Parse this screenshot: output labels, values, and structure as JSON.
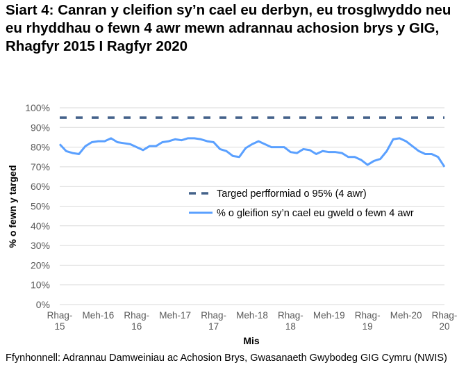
{
  "title": "Siart 4: Canran y cleifion sy’n cael eu derbyn, eu trosglwyddo neu eu rhyddhau o fewn 4 awr mewn adrannau achosion brys y GIG, Rhagfyr 2015 I Ragfyr 2020",
  "source": "Ffynhonnell: Adrannau Damweiniau ac Achosion Brys, Gwasanaeth Gwybodeg GIG Cymru (NWIS)",
  "chart_data": {
    "type": "line",
    "xlabel": "Mis",
    "ylabel": "% o fewn y targed",
    "ylim": [
      0,
      100
    ],
    "yticks": [
      "0%",
      "10%",
      "20%",
      "30%",
      "40%",
      "50%",
      "60%",
      "70%",
      "80%",
      "90%",
      "100%"
    ],
    "xticks": [
      [
        "Rhag-",
        "15"
      ],
      [
        "Meh-16"
      ],
      [
        "Rhag-",
        "16"
      ],
      [
        "Meh-17"
      ],
      [
        "Rhag-",
        "17"
      ],
      [
        "Meh-18"
      ],
      [
        "Rhag-",
        "18"
      ],
      [
        "Meh-19"
      ],
      [
        "Rhag-",
        "19"
      ],
      [
        "Meh-20"
      ],
      [
        "Rhag-",
        "20"
      ]
    ],
    "grid": true,
    "legend": "center-right",
    "series": [
      {
        "name": "Targed perfformiad o 95% (4 awr)",
        "color": "#44628a",
        "dash": true,
        "values": [
          95
        ]
      },
      {
        "name": "% o gleifion sy’n cael eu gweld o fewn 4 awr",
        "color": "#5aa0ff",
        "values": [
          81.5,
          78,
          77,
          76.5,
          80.5,
          82.5,
          83,
          83,
          84.5,
          82.5,
          82,
          81.5,
          80,
          78.5,
          80.5,
          80.5,
          82.5,
          83,
          84,
          83.5,
          84.5,
          84.5,
          84,
          83,
          82.5,
          79,
          78,
          75.5,
          75,
          79.5,
          81.5,
          83,
          81.5,
          80,
          80,
          80,
          77.5,
          77,
          79,
          78.5,
          76.5,
          78,
          77.5,
          77.5,
          77,
          75,
          75,
          73.5,
          71,
          73,
          74,
          78,
          84,
          84.5,
          83,
          80.5,
          78,
          76.5,
          76.5,
          75,
          70
        ]
      }
    ]
  }
}
